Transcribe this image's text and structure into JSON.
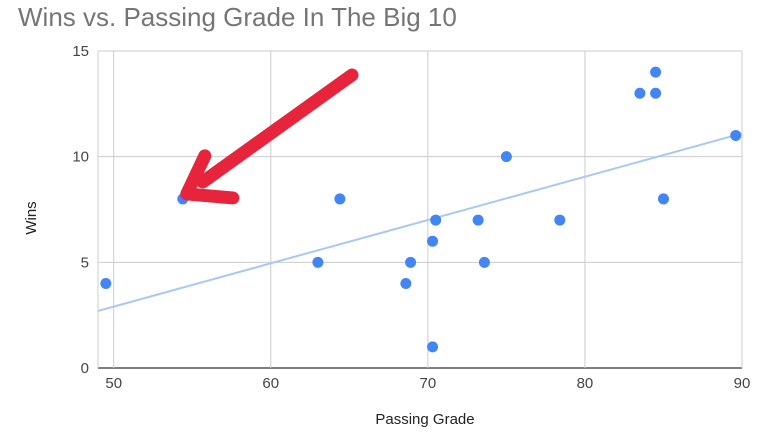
{
  "chart_data": {
    "type": "scatter",
    "title": "Wins vs. Passing Grade In The Big 10",
    "xlabel": "Passing Grade",
    "ylabel": "Wins",
    "xlim": [
      49,
      90
    ],
    "ylim": [
      0,
      15
    ],
    "x_ticks": [
      50,
      60,
      70,
      80,
      90
    ],
    "y_ticks": [
      0,
      5,
      10,
      15
    ],
    "grid": true,
    "legend": "none",
    "point_color": "#4285f4",
    "trendline": {
      "type": "linear",
      "color": "#a9c9f2",
      "from": [
        49,
        2.7
      ],
      "to": [
        90,
        11.1
      ]
    },
    "annotation": {
      "type": "arrow",
      "color": "#e8243c",
      "points_to": [
        54.4,
        8
      ]
    },
    "series": [
      {
        "points": [
          {
            "x": 49.5,
            "y": 4
          },
          {
            "x": 54.4,
            "y": 8
          },
          {
            "x": 63.0,
            "y": 5
          },
          {
            "x": 64.4,
            "y": 8
          },
          {
            "x": 68.6,
            "y": 4
          },
          {
            "x": 68.9,
            "y": 5
          },
          {
            "x": 70.3,
            "y": 6
          },
          {
            "x": 70.5,
            "y": 7
          },
          {
            "x": 70.3,
            "y": 1
          },
          {
            "x": 73.2,
            "y": 7
          },
          {
            "x": 73.6,
            "y": 5
          },
          {
            "x": 75.0,
            "y": 10
          },
          {
            "x": 78.4,
            "y": 7
          },
          {
            "x": 83.5,
            "y": 13
          },
          {
            "x": 84.5,
            "y": 14
          },
          {
            "x": 84.5,
            "y": 13
          },
          {
            "x": 85.0,
            "y": 8
          },
          {
            "x": 89.6,
            "y": 11
          }
        ]
      }
    ]
  }
}
